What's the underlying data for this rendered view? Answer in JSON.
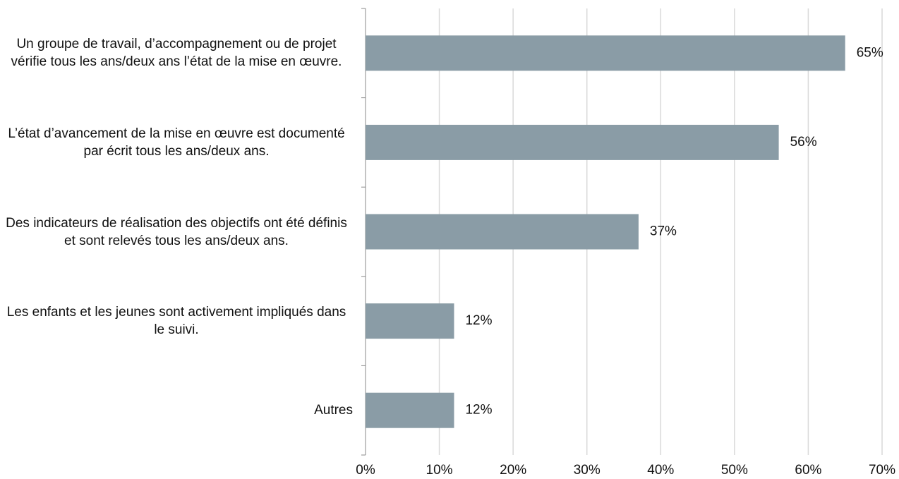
{
  "chart_data": {
    "type": "hbar",
    "categories": [
      "Un groupe de travail, d’accompagnement ou de projet vérifie tous les ans/deux ans l’état de la mise en œuvre.",
      "L’état d’avancement de la mise en œuvre est documenté par écrit tous les ans/deux ans.",
      "Des indicateurs de réalisation des objectifs ont été définis et sont relevés tous les ans/deux ans.",
      "Les enfants et les jeunes sont activement impliqués dans le suivi.",
      "Autres"
    ],
    "values": [
      65,
      56,
      37,
      12,
      12
    ],
    "value_labels": [
      "65%",
      "56%",
      "37%",
      "12%",
      "12%"
    ],
    "color": "#8a9ca6",
    "xlim": [
      0,
      70
    ],
    "xticks": [
      {
        "value": 0,
        "label": "0%"
      },
      {
        "value": 10,
        "label": "10%"
      },
      {
        "value": 20,
        "label": "20%"
      },
      {
        "value": 30,
        "label": "30%"
      },
      {
        "value": 40,
        "label": "40%"
      },
      {
        "value": 50,
        "label": "50%"
      },
      {
        "value": 60,
        "label": "60%"
      },
      {
        "value": 70,
        "label": "70%"
      }
    ],
    "grid": true
  }
}
